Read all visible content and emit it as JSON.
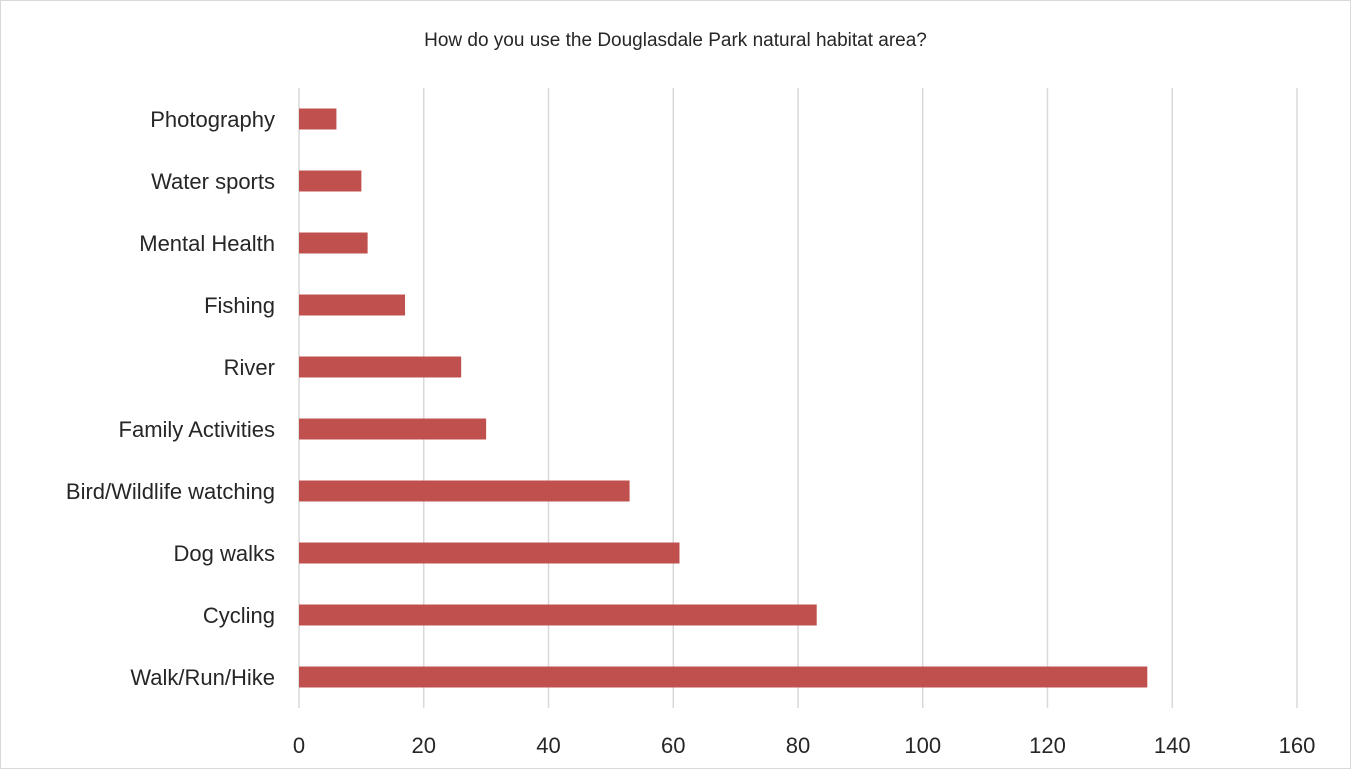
{
  "chart_data": {
    "type": "bar",
    "orientation": "horizontal",
    "title": "How do you use the Douglasdale Park natural habitat area?",
    "categories": [
      "Walk/Run/Hike",
      "Cycling",
      "Dog walks",
      "Bird/Wildlife watching",
      "Family Activities",
      "River",
      "Fishing",
      "Mental Health",
      "Water sports",
      "Photography"
    ],
    "values": [
      136,
      83,
      61,
      53,
      30,
      26,
      17,
      11,
      10,
      6
    ],
    "xlim": [
      0,
      160
    ],
    "xticks": [
      0,
      20,
      40,
      60,
      80,
      100,
      120,
      140,
      160
    ],
    "xlabel": "",
    "ylabel": "",
    "grid": "vertical",
    "legend": "none",
    "bar_color": "#c0504d",
    "grid_color": "#d9d9d9"
  }
}
